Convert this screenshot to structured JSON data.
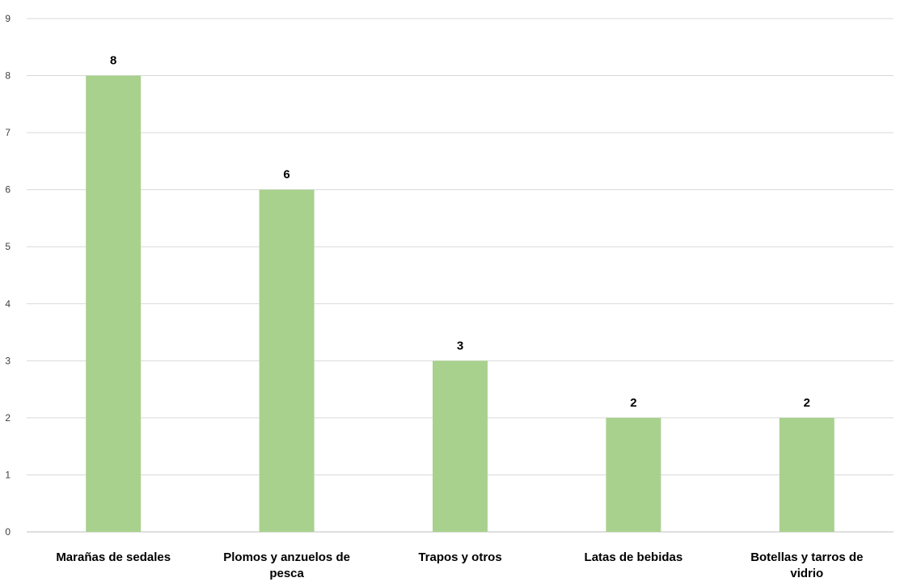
{
  "chart_data": {
    "type": "bar",
    "categories": [
      "Marañas de sedales",
      "Plomos y anzuelos de pesca",
      "Trapos y otros",
      "Latas de bebidas",
      "Botellas y tarros de vidrio"
    ],
    "values": [
      8,
      6,
      3,
      2,
      2
    ],
    "title": "",
    "xlabel": "",
    "ylabel": "",
    "ylim": [
      0,
      9
    ],
    "yticks": [
      0,
      1,
      2,
      3,
      4,
      5,
      6,
      7,
      8,
      9
    ],
    "grid": true,
    "legend": "none",
    "data_labels": true,
    "bar_color": "#a9d18e"
  }
}
